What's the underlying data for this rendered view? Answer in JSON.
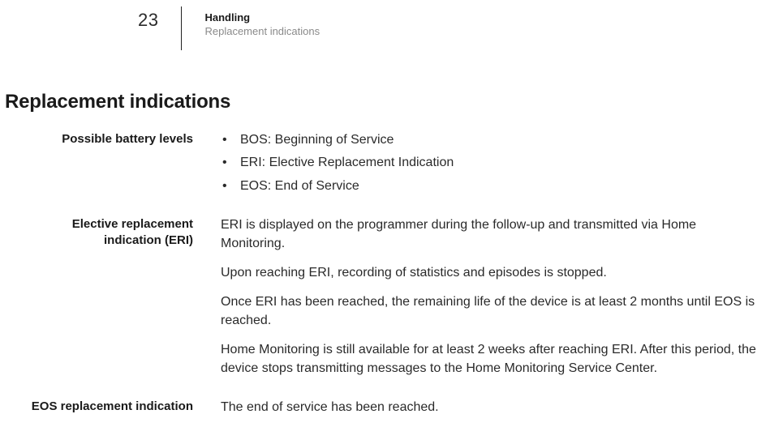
{
  "header": {
    "page_number": "23",
    "chapter": "Handling",
    "section": "Replacement indications"
  },
  "heading": "Replacement indications",
  "sections": {
    "battery_levels": {
      "label": "Possible battery levels",
      "items": [
        "BOS: Beginning of Service",
        "ERI: Elective Replacement Indication",
        "EOS: End of Service"
      ]
    },
    "eri": {
      "label_line1": "Elective replacement",
      "label_line2": "indication (ERI)",
      "paragraphs": [
        "ERI is displayed on the programmer during the follow-up and transmitted via Home Monitoring.",
        "Upon reaching ERI, recording of statistics and episodes is stopped.",
        "Once ERI has been reached, the remaining life of the device is at least 2 months until EOS is reached.",
        "Home Monitoring is still available for at least 2 weeks after reaching ERI. After this period, the device stops transmitting messages to the Home Monitoring Service Center."
      ]
    },
    "eos": {
      "label": "EOS replacement indication",
      "text": "The end of service has been reached."
    }
  }
}
